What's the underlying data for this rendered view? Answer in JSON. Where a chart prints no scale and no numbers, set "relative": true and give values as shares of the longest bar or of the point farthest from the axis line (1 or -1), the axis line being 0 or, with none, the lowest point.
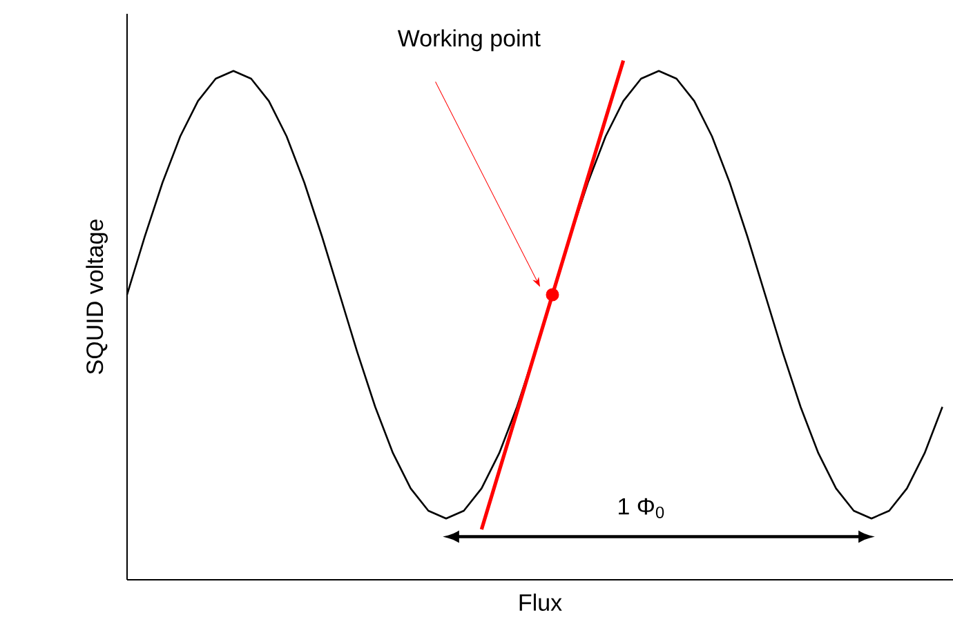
{
  "chart_data": {
    "type": "line",
    "relative": true,
    "xlabel": "Flux",
    "ylabel": "SQUID voltage",
    "categories": [
      null,
      null,
      null,
      null,
      null,
      null,
      null,
      null,
      null,
      null,
      null,
      null,
      null,
      null,
      null,
      null,
      null,
      null,
      null,
      null,
      null,
      null,
      null,
      null,
      null,
      null,
      null,
      null,
      null,
      null,
      null,
      null,
      null,
      null,
      null,
      null,
      null,
      null,
      null,
      null,
      null,
      null,
      null,
      null,
      null,
      null,
      null
    ],
    "series": [
      {
        "color": "#000000",
        "values": [
          0.549,
          0.661,
          0.765,
          0.854,
          0.922,
          0.965,
          0.98,
          0.965,
          0.922,
          0.854,
          0.765,
          0.661,
          0.549,
          0.437,
          0.333,
          0.244,
          0.176,
          0.133,
          0.118,
          0.133,
          0.176,
          0.244,
          0.333,
          0.437,
          0.549,
          0.661,
          0.765,
          0.854,
          0.922,
          0.965,
          0.98,
          0.965,
          0.922,
          0.854,
          0.765,
          0.661,
          0.549,
          0.437,
          0.333,
          0.244,
          0.176,
          0.133,
          0.118,
          0.133,
          0.176,
          0.244,
          0.333
        ]
      },
      {
        "type": "line",
        "color": "#ff0000",
        "values": [
          null,
          null,
          null,
          null,
          null,
          null,
          null,
          null,
          null,
          null,
          null,
          null,
          null,
          null,
          null,
          null,
          null,
          null,
          null,
          null,
          0.097,
          0.21,
          0.323,
          0.436,
          0.549,
          0.662,
          0.775,
          0.888,
          1.0,
          null,
          null,
          null,
          null,
          null,
          null,
          null,
          null,
          null,
          null,
          null,
          null,
          null,
          null,
          null,
          null,
          null,
          null
        ]
      },
      {
        "type": "line",
        "marker": "circle",
        "color": "#ff0000",
        "values": [
          null,
          null,
          null,
          null,
          null,
          null,
          null,
          null,
          null,
          null,
          null,
          null,
          null,
          null,
          null,
          null,
          null,
          null,
          null,
          null,
          null,
          null,
          null,
          null,
          0.549,
          null,
          null,
          null,
          null,
          null,
          null,
          null,
          null,
          null,
          null,
          null,
          null,
          null,
          null,
          null,
          null,
          null,
          null,
          null,
          null,
          null,
          null
        ]
      }
    ],
    "annotations": [
      "Working point",
      "1 Φ$_{0}$"
    ]
  }
}
